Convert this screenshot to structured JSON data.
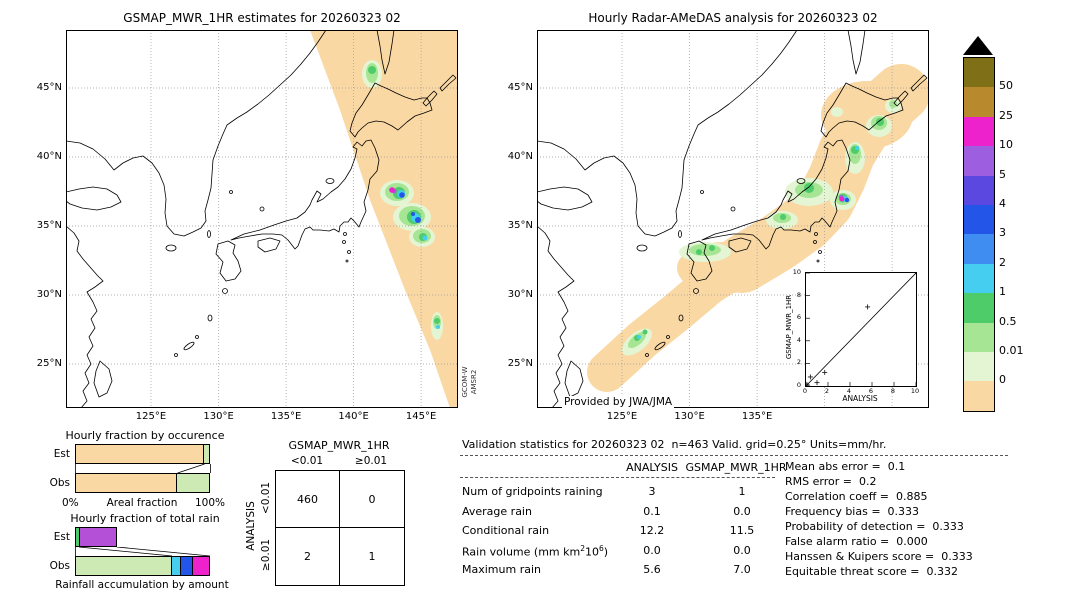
{
  "left_map": {
    "title": "GSMAP_MWR_1HR estimates for 20260323 02",
    "lat_labels": [
      "45°N",
      "40°N",
      "35°N",
      "30°N",
      "25°N"
    ],
    "lon_labels": [
      "125°E",
      "130°E",
      "135°E",
      "140°E",
      "145°E"
    ],
    "watermark": [
      "GCOM-W",
      "AMSR2"
    ]
  },
  "right_map": {
    "title": "Hourly Radar-AMeDAS analysis for 20260323 02",
    "lat_labels": [
      "45°N",
      "40°N",
      "35°N",
      "30°N",
      "25°N"
    ],
    "lon_labels": [
      "125°E",
      "130°E",
      "135°E"
    ],
    "credit": "Provided by JWA/JMA",
    "inset": {
      "ylabel": "GSMAP_MWR_1HR",
      "xlabel": "ANALYSIS",
      "tick_values": [
        0,
        2,
        4,
        6,
        8,
        10
      ]
    }
  },
  "colorbar": {
    "labels": [
      "50",
      "25",
      "10",
      "5",
      "4",
      "3",
      "2",
      "1",
      "0.5",
      "0.01",
      "0"
    ],
    "colors_top_to_bottom": [
      "#7f6f16",
      "#b9892d",
      "#ee22cc",
      "#9d5fe0",
      "#5a48e0",
      "#2356e8",
      "#3f8df0",
      "#45cef0",
      "#4ecc6a",
      "#a6e594",
      "#e4f5d3",
      "#fad8a4"
    ],
    "units": "mm/hr"
  },
  "palette": {
    "tan": "#fad8a4",
    "palegreen": "#cdeab4",
    "green": "#4ecc6a",
    "cyan": "#45cef0",
    "blue": "#2356e8",
    "magenta": "#ee22cc",
    "violet": "#b44fd8"
  },
  "occurrence_chart": {
    "title": "Hourly fraction by occurence",
    "rows": [
      "Est",
      "Obs"
    ],
    "axis_min": "0%",
    "axis_max": "100%",
    "axis_label": "Areal fraction",
    "est_segments": [
      {
        "color": "tan",
        "pct": 96
      },
      {
        "color": "palegreen",
        "pct": 4
      }
    ],
    "obs_segments": [
      {
        "color": "tan",
        "pct": 76
      },
      {
        "color": "palegreen",
        "pct": 24
      }
    ]
  },
  "totalrain_chart": {
    "title": "Hourly fraction of total rain",
    "rows": [
      "Est",
      "Obs"
    ],
    "caption": "Rainfall accumulation by amount",
    "est_segments": [
      {
        "color": "green",
        "pct": 3
      },
      {
        "color": "violet",
        "pct": 28
      }
    ],
    "obs_segments": [
      {
        "color": "palegreen",
        "pct": 72
      },
      {
        "color": "cyan",
        "pct": 7
      },
      {
        "color": "blue",
        "pct": 9
      },
      {
        "color": "magenta",
        "pct": 12
      }
    ]
  },
  "contingency": {
    "title": "GSMAP_MWR_1HR",
    "axis_label": "ANALYSIS",
    "col_headers": [
      "<0.01",
      "≥0.01"
    ],
    "row_headers": [
      "<0.01",
      "≥0.01"
    ],
    "cells": [
      [
        "460",
        "0"
      ],
      [
        "2",
        "1"
      ]
    ]
  },
  "validation": {
    "title": "Validation statistics for 20260323 02  n=463 Valid. grid=0.25° Units=mm/hr.",
    "col_headers": [
      "ANALYSIS",
      "GSMAP_MWR_1HR"
    ],
    "rows": [
      {
        "label": [
          {
            "t": "Num of gridpoints raining"
          }
        ],
        "analysis": "3",
        "gsmap": "1"
      },
      {
        "label": [
          {
            "t": "Average rain"
          }
        ],
        "analysis": "0.1",
        "gsmap": "0.0"
      },
      {
        "label": [
          {
            "t": "Conditional rain"
          }
        ],
        "analysis": "12.2",
        "gsmap": "11.5"
      },
      {
        "label": [
          {
            "t": "Rain volume (mm km"
          },
          {
            "t": "2",
            "sup": true
          },
          {
            "t": "10"
          },
          {
            "t": "6",
            "sup": true
          },
          {
            "t": ")"
          }
        ],
        "analysis": "0.0",
        "gsmap": "0.0"
      },
      {
        "label": [
          {
            "t": "Maximum rain"
          }
        ],
        "analysis": "5.6",
        "gsmap": "7.0"
      }
    ],
    "metrics": [
      {
        "label": "Mean abs error",
        "value": "0.1"
      },
      {
        "label": "RMS error",
        "value": "0.2"
      },
      {
        "label": "Correlation coeff",
        "value": "0.885"
      },
      {
        "label": "Frequency bias",
        "value": "0.333"
      },
      {
        "label": "Probability of detection",
        "value": "0.333"
      },
      {
        "label": "False alarm ratio",
        "value": "0.000"
      },
      {
        "label": "Hanssen & Kuipers score",
        "value": "0.333"
      },
      {
        "label": "Equitable threat score",
        "value": "0.332"
      }
    ]
  },
  "chart_data": [
    {
      "type": "heatmap",
      "title": "GSMAP_MWR_1HR estimates for 20260323 02",
      "units": "mm/hr",
      "x_ticks": [
        "125°E",
        "130°E",
        "135°E",
        "140°E",
        "145°E"
      ],
      "y_ticks": [
        "45°N",
        "40°N",
        "35°N",
        "30°N",
        "25°N"
      ],
      "colorscale_levels": [
        0,
        0.01,
        0.5,
        1,
        2,
        3,
        4,
        5,
        10,
        25,
        50
      ],
      "annotation": "GCOM-W AMSR2",
      "description": "Satellite microwave rain-rate swath over Japan; rain cluster near 35-37N 140-145E, maximum 7.0 mm/hr"
    },
    {
      "type": "heatmap",
      "title": "Hourly Radar-AMeDAS analysis for 20260323 02",
      "units": "mm/hr",
      "x_ticks": [
        "125°E",
        "130°E",
        "135°E"
      ],
      "y_ticks": [
        "45°N",
        "40°N",
        "35°N",
        "30°N",
        "25°N"
      ],
      "colorscale_levels": [
        0,
        0.01,
        0.5,
        1,
        2,
        3,
        4,
        5,
        10,
        25,
        50
      ],
      "annotation": "Provided by JWA/JMA",
      "description": "Radar-AMeDAS analyzed rain over the Japan archipelago; heaviest cell offshore Kanto, maximum 5.6 mm/hr"
    },
    {
      "type": "scatter",
      "xlabel": "ANALYSIS",
      "ylabel": "GSMAP_MWR_1HR",
      "xlim": [
        0,
        10
      ],
      "ylim": [
        0,
        10
      ],
      "diagonal": true,
      "points": [
        [
          0.1,
          0.1
        ],
        [
          0.4,
          0.8
        ],
        [
          1.0,
          0.3
        ],
        [
          1.7,
          1.2
        ],
        [
          5.6,
          7.0
        ]
      ]
    },
    {
      "type": "bar",
      "title": "Hourly fraction by occurence",
      "orientation": "horizontal-stacked",
      "categories": [
        "Est",
        "Obs"
      ],
      "xlabel": "Areal fraction",
      "xlim": [
        "0%",
        "100%"
      ],
      "series": [
        {
          "name": "Est",
          "segments": [
            {
              "bin": "0",
              "pct": 96
            },
            {
              "bin": "0.01-0.5",
              "pct": 4
            }
          ]
        },
        {
          "name": "Obs",
          "segments": [
            {
              "bin": "0",
              "pct": 76
            },
            {
              "bin": "0.01-0.5",
              "pct": 24
            }
          ]
        }
      ]
    },
    {
      "type": "bar",
      "title": "Hourly fraction of total rain",
      "orientation": "horizontal-stacked",
      "categories": [
        "Est",
        "Obs"
      ],
      "xlabel": "Rainfall accumulation by amount",
      "series": [
        {
          "name": "Est",
          "segments": [
            {
              "bin": "0.5-1",
              "pct": 3
            },
            {
              "bin": "5-10",
              "pct": 28
            }
          ]
        },
        {
          "name": "Obs",
          "segments": [
            {
              "bin": "0.01-0.5",
              "pct": 72
            },
            {
              "bin": "1-2",
              "pct": 7
            },
            {
              "bin": "3-4",
              "pct": 9
            },
            {
              "bin": "10-25",
              "pct": 12
            }
          ]
        }
      ]
    },
    {
      "type": "table",
      "title": "Contingency table GSMAP_MWR_1HR vs ANALYSIS (threshold 0.01 mm/hr)",
      "col_headers": [
        "<0.01",
        "≥0.01"
      ],
      "row_headers": [
        "<0.01",
        "≥0.01"
      ],
      "values": [
        [
          460,
          0
        ],
        [
          2,
          1
        ]
      ]
    },
    {
      "type": "table",
      "title": "Validation statistics",
      "n": 463,
      "grid": "0.25°",
      "units": "mm/hr",
      "columns": [
        "ANALYSIS",
        "GSMAP_MWR_1HR"
      ],
      "rows": [
        {
          "label": "Num of gridpoints raining",
          "values": [
            3,
            1
          ]
        },
        {
          "label": "Average rain",
          "values": [
            0.1,
            0.0
          ]
        },
        {
          "label": "Conditional rain",
          "values": [
            12.2,
            11.5
          ]
        },
        {
          "label": "Rain volume (mm km2 10^6)",
          "values": [
            0.0,
            0.0
          ]
        },
        {
          "label": "Maximum rain",
          "values": [
            5.6,
            7.0
          ]
        }
      ],
      "metrics": {
        "Mean abs error": 0.1,
        "RMS error": 0.2,
        "Correlation coeff": 0.885,
        "Frequency bias": 0.333,
        "Probability of detection": 0.333,
        "False alarm ratio": 0.0,
        "Hanssen & Kuipers score": 0.333,
        "Equitable threat score": 0.332
      }
    }
  ]
}
